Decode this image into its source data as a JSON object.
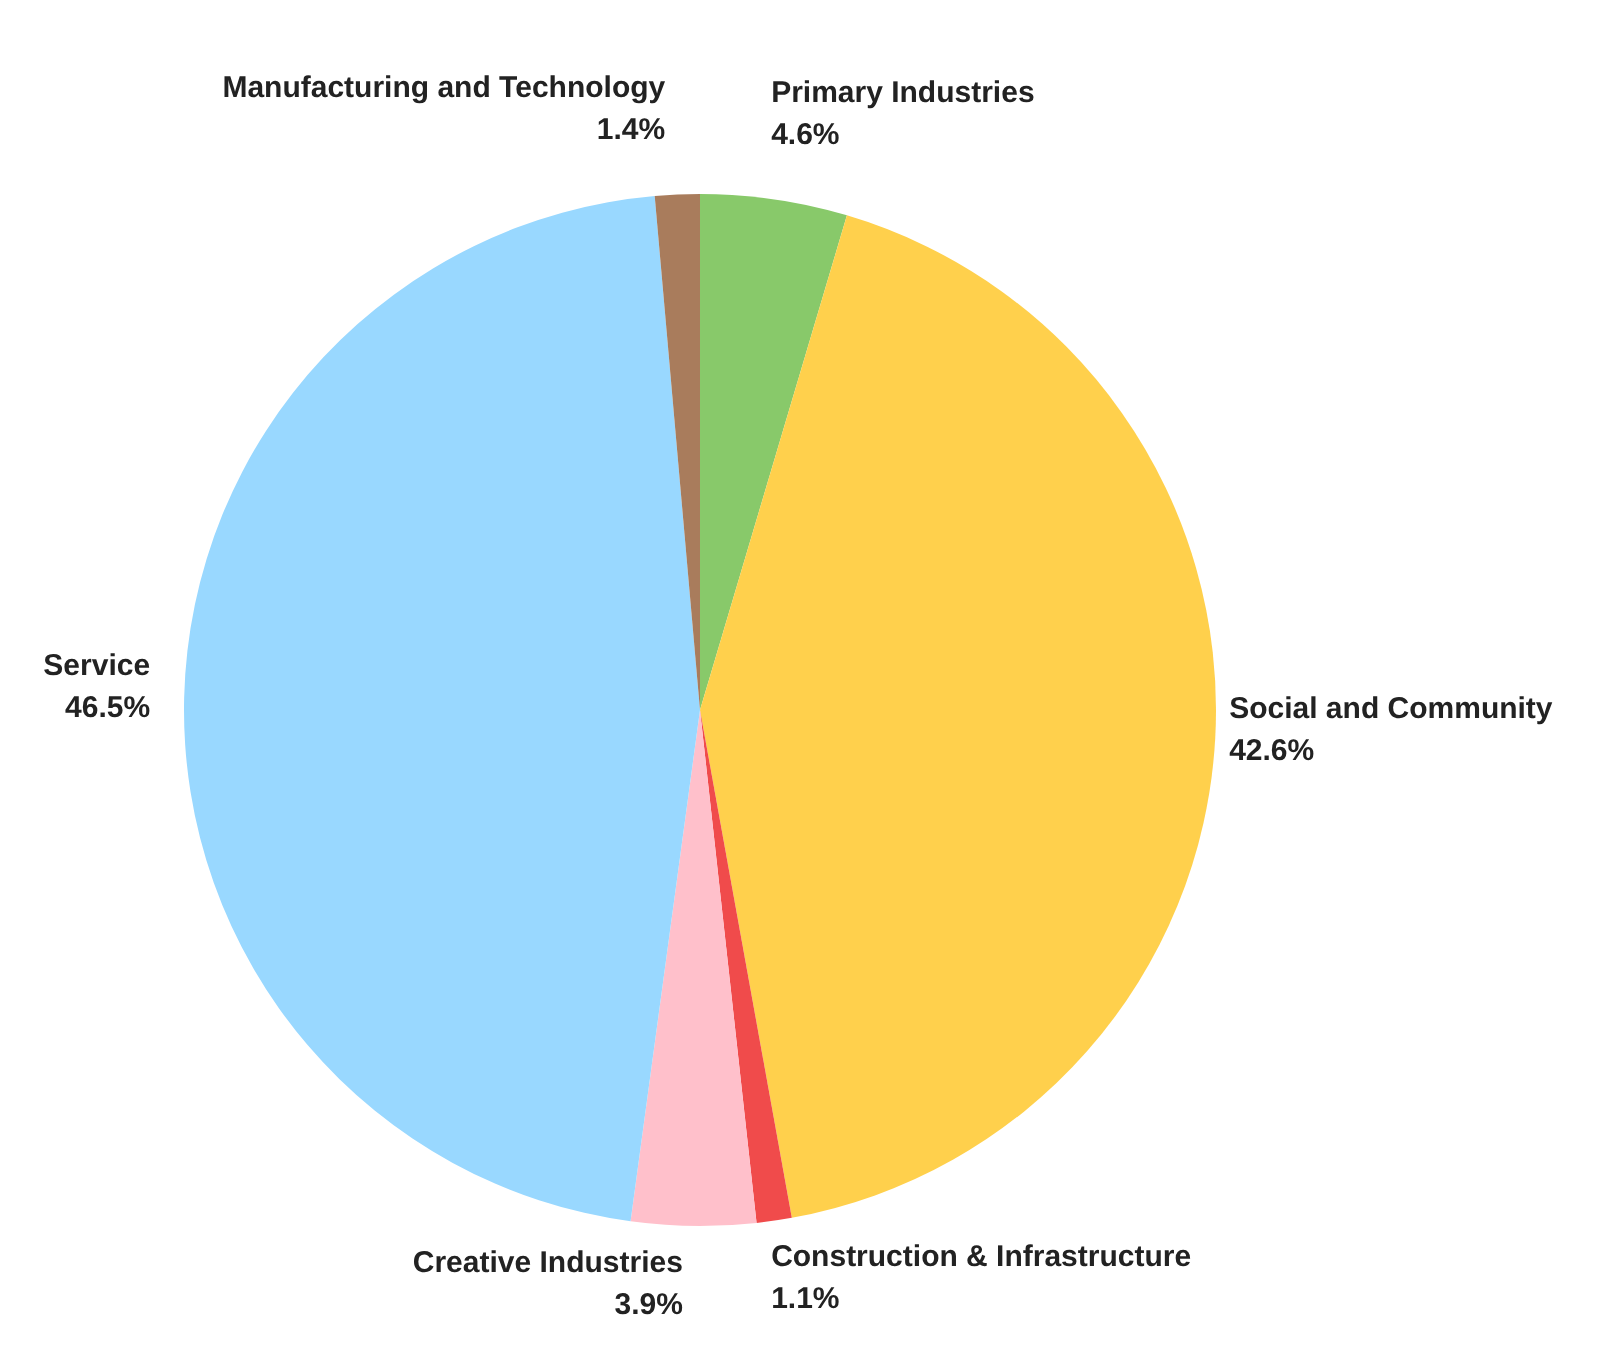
{
  "chart_data": {
    "type": "pie",
    "categories": [
      "Primary Industries",
      "Social and Community",
      "Construction & Infrastructure",
      "Creative Industries",
      "Service",
      "Manufacturing and Technology"
    ],
    "values": [
      4.6,
      42.6,
      1.1,
      3.9,
      46.5,
      1.4
    ],
    "value_labels": [
      "4.6%",
      "42.6%",
      "1.1%",
      "3.9%",
      "46.5%",
      "1.4%"
    ],
    "colors": [
      "#88c96a",
      "#ffd04c",
      "#f04b4b",
      "#ffc0cb",
      "#99d8ff",
      "#a97c5c"
    ],
    "legend": false
  }
}
